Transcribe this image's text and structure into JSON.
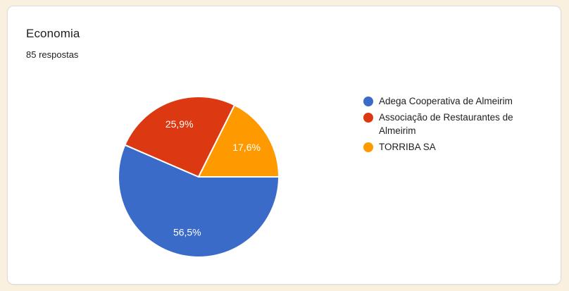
{
  "card": {
    "title": "Economia",
    "responses": "85 respostas"
  },
  "colors": {
    "page_background": "#F9F0DF",
    "card_background": "#FFFFFF",
    "card_border": "#DCDCDC",
    "title_text": "#202124",
    "subtitle_text": "#202124",
    "legend_text": "#212121",
    "slice_label_text": "#FFFFFF",
    "slice_separator": "#FFFFFF"
  },
  "chart_data": {
    "type": "pie",
    "title": "Economia",
    "subtitle": "85 respostas",
    "legend_position": "right",
    "start_angle": "east-clockwise",
    "slices": [
      {
        "label": "Adega Cooperativa de Almeirim",
        "percent": 56.5,
        "percent_label": "56,5%",
        "color": "#3B6BC9"
      },
      {
        "label": "Associação de Restaurantes de Almeirim",
        "percent": 25.9,
        "percent_label": "25,9%",
        "color": "#DC3912"
      },
      {
        "label": "TORRIBA SA",
        "percent": 17.6,
        "percent_label": "17,6%",
        "color": "#FF9900"
      }
    ]
  }
}
